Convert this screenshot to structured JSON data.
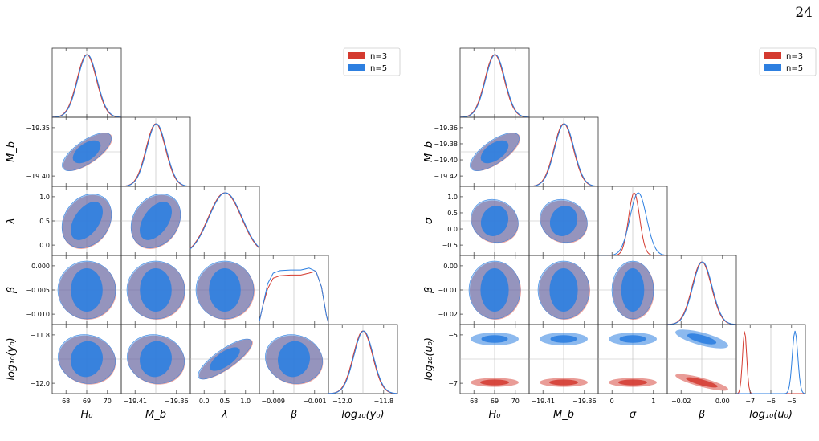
{
  "page_number": "24",
  "colors": {
    "n3": "#d43a2f",
    "n5": "#2d7fe0"
  },
  "legend": [
    "n=3",
    "n=5"
  ],
  "figures": [
    {
      "id": "left",
      "params": [
        {
          "label": "H₀",
          "ticks": [
            "68",
            "69",
            "70"
          ]
        },
        {
          "label": "M_b",
          "ticks": [
            "−19.41",
            "−19.36"
          ]
        },
        {
          "label": "λ",
          "ticks": [
            "0.0",
            "0.5",
            "1.0"
          ]
        },
        {
          "label": "β",
          "ticks": [
            "−0.009",
            "−0.001"
          ]
        },
        {
          "label": "log₁₀(y₀)",
          "ticks": [
            "−12.0",
            "−11.8"
          ]
        }
      ],
      "ylabels": [
        "",
        "M_b",
        "λ",
        "β",
        "log₁₀(y₀)"
      ],
      "yticks": [
        [],
        [
          "−19.35",
          "−19.40"
        ],
        [
          "1.0",
          "0.5",
          "0.0"
        ],
        [
          "0.000",
          "−0.005",
          "−0.010"
        ],
        [
          "−11.8",
          "−12.0"
        ]
      ]
    },
    {
      "id": "right",
      "params": [
        {
          "label": "H₀",
          "ticks": [
            "68",
            "69",
            "70"
          ]
        },
        {
          "label": "M_b",
          "ticks": [
            "−19.41",
            "−19.36"
          ]
        },
        {
          "label": "σ",
          "ticks": [
            "0",
            "1"
          ]
        },
        {
          "label": "β",
          "ticks": [
            "−0.02",
            "0.00"
          ]
        },
        {
          "label": "log₁₀(u₀)",
          "ticks": [
            "−7",
            "−6",
            "−5"
          ]
        }
      ],
      "ylabels": [
        "",
        "M_b",
        "σ",
        "β",
        "log₁₀(u₀)"
      ],
      "yticks": [
        [],
        [
          "−19.36",
          "−19.38",
          "−19.40",
          "−19.42"
        ],
        [
          "1.0",
          "0.5",
          "0.0",
          "−0.5"
        ],
        [
          "0.00",
          "−0.01",
          "−0.02"
        ],
        [
          "−5",
          "−7"
        ]
      ]
    }
  ]
}
